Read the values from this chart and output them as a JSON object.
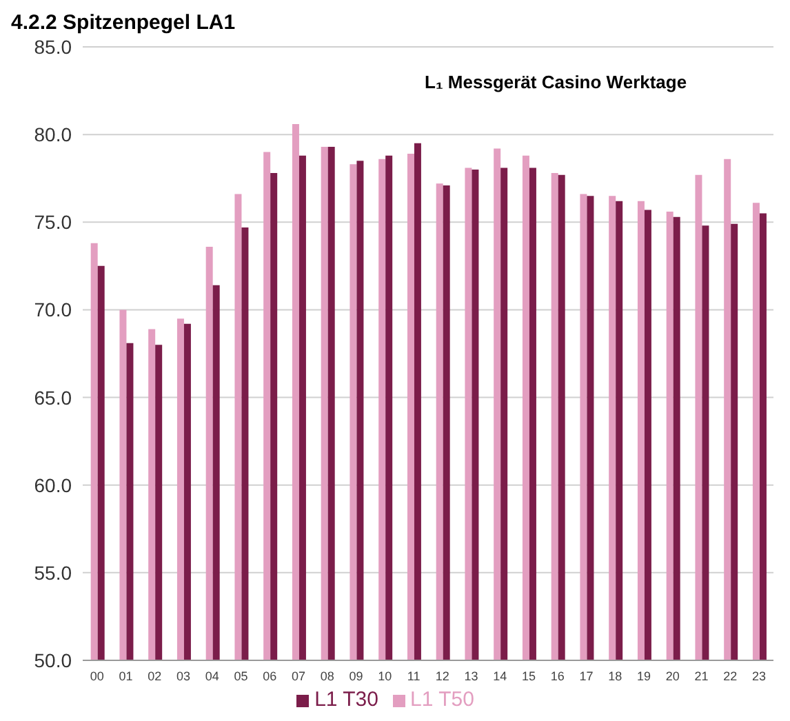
{
  "chart_data": {
    "type": "bar",
    "title": "4.2.2 Spitzenpegel LA1",
    "subtitle": "L₁ Messgerät Casino Werktage",
    "categories": [
      "00",
      "01",
      "02",
      "03",
      "04",
      "05",
      "06",
      "07",
      "08",
      "09",
      "10",
      "11",
      "12",
      "13",
      "14",
      "15",
      "16",
      "17",
      "18",
      "19",
      "20",
      "21",
      "22",
      "23"
    ],
    "series": [
      {
        "name": "L1 T50",
        "color": "#e39ec0",
        "values": [
          73.8,
          70.0,
          68.9,
          69.5,
          73.6,
          76.6,
          79.0,
          80.6,
          79.3,
          78.3,
          78.6,
          78.9,
          77.2,
          78.1,
          79.2,
          78.8,
          77.8,
          76.6,
          76.5,
          76.2,
          75.6,
          77.7,
          78.6,
          76.1
        ]
      },
      {
        "name": "L1 T30",
        "color": "#7b1d4a",
        "values": [
          72.5,
          68.1,
          68.0,
          69.2,
          71.4,
          74.7,
          77.8,
          78.8,
          79.3,
          78.5,
          78.8,
          79.5,
          77.1,
          78.0,
          78.1,
          78.1,
          77.7,
          76.5,
          76.2,
          75.7,
          75.3,
          74.8,
          74.9,
          75.5
        ]
      }
    ],
    "ylim": [
      50,
      85
    ],
    "yticks": [
      {
        "value": 50,
        "label": "50.0"
      },
      {
        "value": 55,
        "label": "55.0"
      },
      {
        "value": 60,
        "label": "60.0"
      },
      {
        "value": 65,
        "label": "65.0"
      },
      {
        "value": 70,
        "label": "70.0"
      },
      {
        "value": 75,
        "label": "75.0"
      },
      {
        "value": 80,
        "label": "80.0"
      },
      {
        "value": 85,
        "label": "85.0"
      }
    ],
    "grid": "y",
    "legend": "bottom"
  }
}
